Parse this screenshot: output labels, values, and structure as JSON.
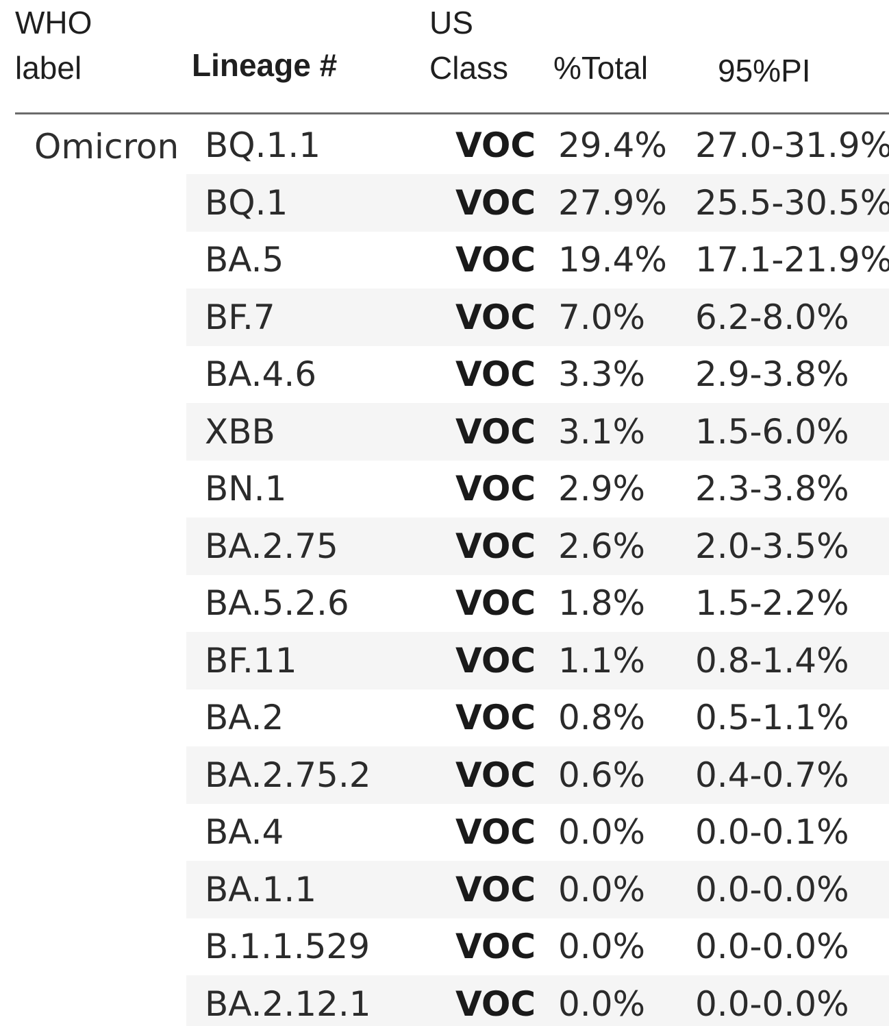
{
  "table": {
    "headers": {
      "who_label": [
        "WHO",
        "label"
      ],
      "lineage": "Lineage #",
      "us_class": [
        "US",
        "Class"
      ],
      "total": "%Total",
      "pi": "95%PI"
    },
    "group_label": "Omicron"
  },
  "chart_data": {
    "type": "table",
    "columns": [
      "WHO label",
      "Lineage #",
      "US Class",
      "%Total",
      "95%PI"
    ],
    "rows": [
      {
        "who_label": "Omicron",
        "lineage": "BQ.1.1",
        "us_class": "VOC",
        "total": "29.4%",
        "pi": "27.0-31.9%"
      },
      {
        "who_label": "Omicron",
        "lineage": "BQ.1",
        "us_class": "VOC",
        "total": "27.9%",
        "pi": "25.5-30.5%"
      },
      {
        "who_label": "Omicron",
        "lineage": "BA.5",
        "us_class": "VOC",
        "total": "19.4%",
        "pi": "17.1-21.9%"
      },
      {
        "who_label": "Omicron",
        "lineage": "BF.7",
        "us_class": "VOC",
        "total": "7.0%",
        "pi": "6.2-8.0%"
      },
      {
        "who_label": "Omicron",
        "lineage": "BA.4.6",
        "us_class": "VOC",
        "total": "3.3%",
        "pi": "2.9-3.8%"
      },
      {
        "who_label": "Omicron",
        "lineage": "XBB",
        "us_class": "VOC",
        "total": "3.1%",
        "pi": "1.5-6.0%"
      },
      {
        "who_label": "Omicron",
        "lineage": "BN.1",
        "us_class": "VOC",
        "total": "2.9%",
        "pi": "2.3-3.8%"
      },
      {
        "who_label": "Omicron",
        "lineage": "BA.2.75",
        "us_class": "VOC",
        "total": "2.6%",
        "pi": "2.0-3.5%"
      },
      {
        "who_label": "Omicron",
        "lineage": "BA.5.2.6",
        "us_class": "VOC",
        "total": "1.8%",
        "pi": "1.5-2.2%"
      },
      {
        "who_label": "Omicron",
        "lineage": "BF.11",
        "us_class": "VOC",
        "total": "1.1%",
        "pi": "0.8-1.4%"
      },
      {
        "who_label": "Omicron",
        "lineage": "BA.2",
        "us_class": "VOC",
        "total": "0.8%",
        "pi": "0.5-1.1%"
      },
      {
        "who_label": "Omicron",
        "lineage": "BA.2.75.2",
        "us_class": "VOC",
        "total": "0.6%",
        "pi": "0.4-0.7%"
      },
      {
        "who_label": "Omicron",
        "lineage": "BA.4",
        "us_class": "VOC",
        "total": "0.0%",
        "pi": "0.0-0.1%"
      },
      {
        "who_label": "Omicron",
        "lineage": "BA.1.1",
        "us_class": "VOC",
        "total": "0.0%",
        "pi": "0.0-0.0%"
      },
      {
        "who_label": "Omicron",
        "lineage": "B.1.1.529",
        "us_class": "VOC",
        "total": "0.0%",
        "pi": "0.0-0.0%"
      },
      {
        "who_label": "Omicron",
        "lineage": "BA.2.12.1",
        "us_class": "VOC",
        "total": "0.0%",
        "pi": "0.0-0.0%"
      }
    ]
  }
}
